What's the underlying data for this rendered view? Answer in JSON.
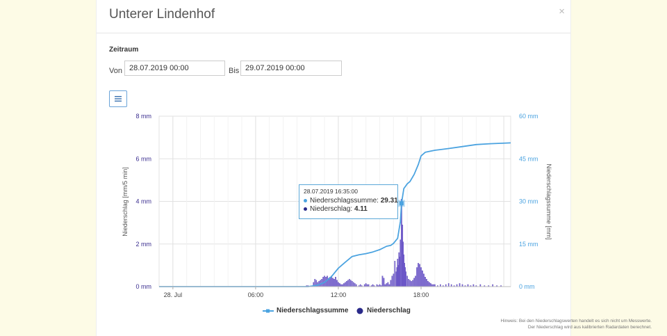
{
  "dialog": {
    "title": "Unterer Lindenhof",
    "close_symbol": "×",
    "period_label": "Zeitraum",
    "from_label": "Von",
    "from_value": "28.07.2019 00:00",
    "to_label": "Bis",
    "to_value": "29.07.2019 00:00",
    "menu_icon": "hamburger-menu-icon"
  },
  "chart_data": {
    "type": "bar",
    "title": "",
    "xlabel": "",
    "ylabel": "Niederschlag [mm/5 min]",
    "y2label": "Niederschlagssumme [mm]",
    "x_tick_labels": [
      "28. Jul",
      "06:00",
      "12:00",
      "18:00"
    ],
    "x_tick_hours": [
      0,
      6,
      12,
      18
    ],
    "xlim_hours": [
      -1,
      24.5
    ],
    "ylim": [
      0,
      8
    ],
    "y2lim": [
      0,
      60
    ],
    "y_ticks": [
      "0 mm",
      "2 mm",
      "4 mm",
      "6 mm",
      "8 mm"
    ],
    "y_tick_values": [
      0,
      2,
      4,
      6,
      8
    ],
    "y2_ticks": [
      "0 mm",
      "15 mm",
      "30 mm",
      "45 mm",
      "60 mm"
    ],
    "y2_tick_values": [
      0,
      15,
      30,
      45,
      60
    ],
    "grid": true,
    "legend_position": "bottom",
    "series": [
      {
        "name": "Niederschlagssumme",
        "type": "line",
        "axis": "right",
        "color": "#4ba3e0",
        "x_hours": [
          -1,
          9.8,
          10.5,
          11.0,
          11.5,
          12.0,
          12.5,
          13.0,
          13.5,
          14.0,
          14.5,
          15.0,
          15.5,
          15.8,
          16.0,
          16.3,
          16.5,
          16.583,
          16.75,
          17.0,
          17.2,
          17.5,
          17.8,
          18.0,
          18.3,
          18.6,
          19.0,
          20.0,
          21.0,
          22.0,
          23.0,
          24.5
        ],
        "values": [
          0,
          0,
          0.5,
          1.5,
          3.5,
          6.5,
          8.6,
          10.6,
          11.2,
          11.6,
          12.2,
          13.0,
          14.2,
          14.5,
          15.2,
          17.0,
          23.0,
          29.31,
          34.5,
          36.2,
          37.0,
          39.5,
          43.0,
          46.0,
          47.3,
          47.6,
          48.0,
          48.6,
          49.3,
          50.0,
          50.3,
          50.6
        ]
      },
      {
        "name": "Niederschlag",
        "type": "bar",
        "axis": "left",
        "color": "#7a64d6",
        "x_hours": [
          9.7,
          9.8,
          10.2,
          10.3,
          10.4,
          10.5,
          10.6,
          10.7,
          10.8,
          10.9,
          11.0,
          11.1,
          11.2,
          11.3,
          11.4,
          11.5,
          11.6,
          11.7,
          11.8,
          11.9,
          12.0,
          12.1,
          12.2,
          12.3,
          12.4,
          12.5,
          12.6,
          12.7,
          12.8,
          12.9,
          13.0,
          13.1,
          13.2,
          13.3,
          13.5,
          13.6,
          13.7,
          13.9,
          14.0,
          14.1,
          14.2,
          14.4,
          14.5,
          14.6,
          14.8,
          14.9,
          15.0,
          15.1,
          15.2,
          15.3,
          15.4,
          15.5,
          15.6,
          15.7,
          15.8,
          15.9,
          16.0,
          16.1,
          16.2,
          16.25,
          16.3,
          16.35,
          16.4,
          16.45,
          16.5,
          16.583,
          16.65,
          16.7,
          16.75,
          16.8,
          16.85,
          16.9,
          17.0,
          17.1,
          17.2,
          17.3,
          17.4,
          17.5,
          17.6,
          17.7,
          17.8,
          17.9,
          18.0,
          18.1,
          18.2,
          18.3,
          18.4,
          18.5,
          18.6,
          18.7,
          18.8,
          18.9,
          19.0,
          19.2,
          19.4,
          19.6,
          19.8,
          20.0,
          20.2,
          20.4,
          20.6,
          20.8,
          21.0,
          21.2,
          21.4,
          21.6,
          21.8,
          22.0,
          22.3,
          22.6,
          22.9,
          23.2,
          23.5,
          23.8
        ],
        "values": [
          0.05,
          0.05,
          0.2,
          0.35,
          0.3,
          0.2,
          0.25,
          0.3,
          0.35,
          0.45,
          0.5,
          0.45,
          0.5,
          0.4,
          0.45,
          0.5,
          0.4,
          0.35,
          0.45,
          0.3,
          0.2,
          0.15,
          0.1,
          0.1,
          0.15,
          0.2,
          0.25,
          0.3,
          0.35,
          0.3,
          0.25,
          0.2,
          0.15,
          0.1,
          0.05,
          0.1,
          0.05,
          0.1,
          0.15,
          0.1,
          0.1,
          0.05,
          0.1,
          0.05,
          0.1,
          0.05,
          0.1,
          0.05,
          0.5,
          0.4,
          0.1,
          0.15,
          0.2,
          0.1,
          0.3,
          0.5,
          0.6,
          1.2,
          0.7,
          0.9,
          1.3,
          1.0,
          1.6,
          1.4,
          2.2,
          4.11,
          2.9,
          2.1,
          1.5,
          1.1,
          0.9,
          0.7,
          0.5,
          0.35,
          0.3,
          0.25,
          0.3,
          0.4,
          0.5,
          0.9,
          1.1,
          1.05,
          0.9,
          0.75,
          0.6,
          0.45,
          0.35,
          0.25,
          0.2,
          0.15,
          0.1,
          0.1,
          0.1,
          0.05,
          0.1,
          0.05,
          0.1,
          0.15,
          0.1,
          0.05,
          0.1,
          0.15,
          0.1,
          0.05,
          0.1,
          0.05,
          0.1,
          0.05,
          0.1,
          0.05,
          0.05,
          0.1,
          0.05,
          0.05
        ]
      }
    ],
    "tooltip": {
      "date": "28.07.2019 16:35:00",
      "sum_label": "Niederschlagssumme:",
      "sum_value": "29.31",
      "precip_label": "Niederschlag:",
      "precip_value": "4.11",
      "sum_dot_color": "#4ba3e0",
      "precip_dot_color": "#2a2a8a"
    },
    "legend": [
      {
        "name": "Niederschlagssumme",
        "color": "#4ba3e0"
      },
      {
        "name": "Niederschlag",
        "color": "#2a2a8a"
      }
    ]
  },
  "hint": {
    "line1": "Hinweis: Bei den Niederschlagswerten handelt es sich nicht um Messwerte.",
    "line2": "Der Niederschlag wird aus kalibrierten Radardaten berechnet."
  }
}
